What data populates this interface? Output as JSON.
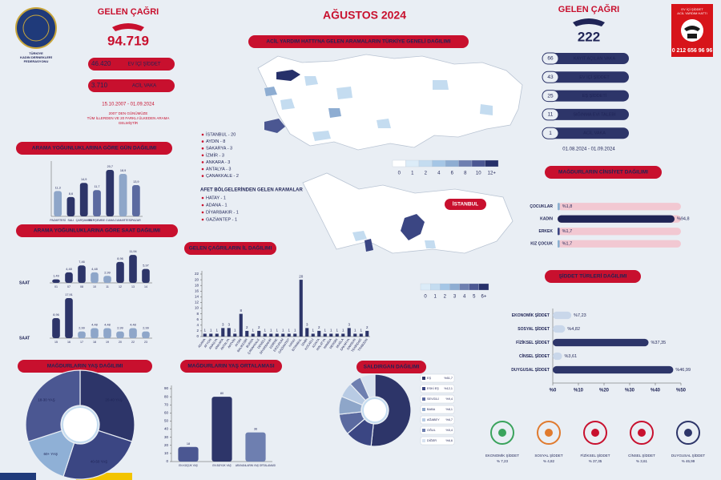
{
  "header": {
    "title": "AĞUSTOS 2024"
  },
  "logo": {
    "lines": [
      "TÜRKİYE",
      "KADIN DERNEKLERİ",
      "FEDERASYONU"
    ]
  },
  "left_summary": {
    "title": "GELEN ÇAĞRI",
    "total": "94.719",
    "items": [
      {
        "value": "46.420",
        "label": "EV İÇİ ŞİDDET"
      },
      {
        "value": "3.710",
        "label": "ACİL VAKA"
      }
    ],
    "date_range": "15.10.2007 - 01.09.2024",
    "note": [
      "2007' DEN GÜNÜMÜZE",
      "TÜM İLLERDEN VE 20 FARKLI ÜLKEDEN ARAMA",
      "GELMİŞTİR"
    ]
  },
  "right_summary": {
    "title": "GELEN ÇAĞRI",
    "total": "222",
    "items": [
      {
        "value": "66",
        "label": "KAYIT AÇILAN VAKA"
      },
      {
        "value": "43",
        "label": "EV İÇİ ŞİDDET"
      },
      {
        "value": "25",
        "label": "EŞ ŞİDDETİ"
      },
      {
        "value": "11",
        "label": "SIĞINMA EVİ TALEBİ"
      },
      {
        "value": "1",
        "label": "ACİL VAKA"
      }
    ],
    "date_range": "01.08.2024 - 01.09.2024"
  },
  "hotline": {
    "lines": [
      "EV İÇİ ŞİDDET",
      "ACİL YARDIM HATTI"
    ],
    "number": "0 212 656 96 96"
  },
  "map": {
    "title": "ACİL YARDIM HATTI'NA GELEN ARAMALARIN TÜRKİYE GENELİ DAĞILIMI",
    "cities": [
      "İSTANBUL - 20",
      "AYDIN - 8",
      "SAKARYA - 3",
      "İZMİR - 3",
      "ANKARA - 3",
      "ANTALYA - 3",
      "ÇANAKKALE - 2"
    ],
    "disaster_title": "AFET BÖLGELERİNDEN GELEN ARAMALAR",
    "disaster_cities": [
      "HATAY - 1",
      "ADANA - 1",
      "DİYARBAKIR - 1",
      "GAZİANTEP - 1"
    ],
    "legend": [
      "0",
      "1",
      "2",
      "4",
      "6",
      "8",
      "10",
      "12+"
    ],
    "istanbul_label": "İSTANBUL",
    "istanbul_legend": [
      "0",
      "1",
      "2",
      "3",
      "4",
      "5",
      "6+"
    ]
  },
  "icons": [
    {
      "name": "EKONOMİK ŞİDDET",
      "value": "% 7,23"
    },
    {
      "name": "SOSYAL ŞİDDET",
      "value": "% 4,82"
    },
    {
      "name": "FİZİKSEL ŞİDDET",
      "value": "% 37,35"
    },
    {
      "name": "CİNSEL ŞİDDET",
      "value": "% 3,61"
    },
    {
      "name": "DUYGUSAL ŞİDDET",
      "value": "% 46,99"
    }
  ],
  "chart_data": [
    {
      "type": "bar",
      "title": "ARAMA YOĞUNLUKLARINA GÖRE GÜN DAĞILIMI",
      "categories": [
        "PAZARTESİ",
        "SALI",
        "ÇARŞAMBA",
        "PERŞEMBE",
        "CUMA",
        "CUMARTESİ",
        "PAZAR"
      ],
      "values": [
        11.3,
        8.6,
        14.9,
        11.7,
        20.7,
        18.9,
        13.9
      ],
      "value_labels": [
        "11,3",
        "8,6",
        "14,9",
        "11,7",
        "20,7",
        "18,9",
        "13,9"
      ],
      "colors": [
        "#8ea6c9",
        "#2d3569",
        "#2d3569",
        "#5b6aa0",
        "#2d3569",
        "#8ea6c9",
        "#5b6aa0"
      ]
    },
    {
      "type": "bar",
      "title": "ARAMA YOĞUNLUKLARINA GÖRE SAAT DAĞILIMI",
      "x_label": "SAAT",
      "categories": [
        "01",
        "07",
        "08",
        "10",
        "11",
        "12",
        "13",
        "14"
      ],
      "values": [
        1.49,
        4.48,
        7.46,
        4.48,
        2.99,
        8.96,
        11.94,
        5.97
      ],
      "value_labels": [
        "1,49",
        "4,48",
        "7,46",
        "4,48",
        "2,99",
        "8,96",
        "11,94",
        "5,97"
      ],
      "colors": [
        "#2d3569",
        "#2d3569",
        "#2d3569",
        "#8ea6c9",
        "#8ea6c9",
        "#2d3569",
        "#2d3569",
        "#2d3569"
      ]
    },
    {
      "type": "bar",
      "x_label": "SAAT",
      "categories": [
        "15",
        "16",
        "17",
        "18",
        "19",
        "20",
        "22",
        "23"
      ],
      "values": [
        8.96,
        17.91,
        2.99,
        4.48,
        4.48,
        2.99,
        4.48,
        2.99
      ],
      "value_labels": [
        "8,96",
        "17,91",
        "2,99",
        "4,48",
        "4,48",
        "2,99",
        "4,48",
        "2,99"
      ],
      "colors": [
        "#2d3569",
        "#2d3569",
        "#8ea6c9",
        "#8ea6c9",
        "#8ea6c9",
        "#8ea6c9",
        "#8ea6c9",
        "#8ea6c9"
      ]
    },
    {
      "type": "bar",
      "title": "GELEN ÇAĞRILARIN İL DAĞILIMI",
      "categories": [
        "ADANA",
        "AFYON",
        "AMASYA",
        "ANKARA",
        "ANTALYA",
        "ARTVİN",
        "AYDIN",
        "BALIKESİR",
        "BURSA",
        "ÇANAKKALE",
        "DENİZLİ",
        "DİYARBAKIR",
        "EDİRNE",
        "ERZURUM",
        "GAZİANTEP",
        "HATAY",
        "İSTANBUL",
        "İZMİR",
        "KOCAELİ",
        "KONYA",
        "MALATYA",
        "MANİSA",
        "MERSİN",
        "MUĞLA",
        "SAKARYA",
        "SAMSUN",
        "TEKİRDAĞ",
        "TRABZON"
      ],
      "values": [
        1,
        1,
        1,
        3,
        3,
        1,
        8,
        2,
        1,
        2,
        1,
        1,
        1,
        1,
        1,
        1,
        20,
        3,
        1,
        2,
        1,
        1,
        1,
        1,
        3,
        1,
        1,
        2
      ],
      "color": "#2d3569",
      "ylim": [
        0,
        22
      ],
      "yticks": [
        0,
        2,
        4,
        6,
        8,
        10,
        12,
        14,
        16,
        18,
        20,
        22
      ]
    },
    {
      "type": "pie",
      "title": "MAĞDURLARIN YAŞ DAĞILIMI",
      "categories": [
        "20-40 YAŞ",
        "40-50 YAŞ",
        "60+ YAŞ",
        "18-30 YAŞ"
      ],
      "values": [
        30,
        25,
        15,
        30
      ],
      "colors": [
        "#2d3569",
        "#3b4683",
        "#8fb0d6",
        "#4b5792"
      ]
    },
    {
      "type": "bar",
      "title": "MAĞDURLARIN YAŞ ORTALAMASI",
      "categories": [
        "EN KÜÇÜK YAŞ",
        "EN BÜYÜK YAŞ",
        "ARAYANLARIN YAŞ ORTALAMASI"
      ],
      "values": [
        18,
        80,
        36
      ],
      "colors": [
        "#4b5792",
        "#2d3569",
        "#6e7fb0"
      ],
      "ylim": [
        0,
        90
      ],
      "yticks": [
        0,
        10,
        20,
        30,
        40,
        50,
        60,
        70,
        80,
        90
      ]
    },
    {
      "type": "pie",
      "title": "SALDIRGAN DAĞILIMI",
      "categories": [
        "EŞ",
        "ESKİ EŞ",
        "SEVGİLİ",
        "BABA",
        "AĞABEY",
        "OĞUL",
        "DİĞER"
      ],
      "values": [
        51.7,
        12.1,
        9.4,
        8.1,
        6.7,
        5.4,
        6.6
      ],
      "value_labels": [
        "%51,7",
        "%12,1",
        "%9,4",
        "%8,1",
        "%6,7",
        "%5,4",
        "%6,6"
      ],
      "colors": [
        "#2d3569",
        "#3b4683",
        "#5b6aa0",
        "#8ea6c9",
        "#b8cbe4",
        "#6e7fb0",
        "#d7e2f0"
      ]
    },
    {
      "type": "hbar",
      "title": "MAĞDURLARIN CİNSİYET DAĞILIMI",
      "categories": [
        "ÇOCUKLAR",
        "KADIN",
        "ERKEK",
        "KIZ ÇOCUK"
      ],
      "values": [
        1.8,
        94.8,
        1.7,
        1.7
      ],
      "value_labels": [
        "%1,8",
        "%94,8",
        "%1,7",
        "%1,7"
      ],
      "colors": [
        "#8ab0d0",
        "#1f2456",
        "#3b4683",
        "#8ab0d0"
      ],
      "track": "#f2c8d2",
      "xlim": [
        0,
        100
      ]
    },
    {
      "type": "hbar",
      "title": "ŞİDDET TÜRLERİ DAĞILIMI",
      "categories": [
        "EKONOMİK ŞİDDET",
        "SOSYAL ŞİDDET",
        "FİZİKSEL ŞİDDET",
        "CİNSEL ŞİDDET",
        "DUYGUSAL ŞİDDET"
      ],
      "values": [
        7.23,
        4.82,
        37.35,
        3.61,
        46.99
      ],
      "value_labels": [
        "%7,23",
        "%4,82",
        "%37,35",
        "%3,61",
        "%46,99"
      ],
      "colors": [
        "#c9d7ea",
        "#c9d7ea",
        "#2d3569",
        "#c9d7ea",
        "#2d3569"
      ],
      "xlim": [
        0,
        50
      ],
      "xticks": [
        {
          "value": 0,
          "label": "%0"
        },
        {
          "value": 10,
          "label": "%10"
        },
        {
          "value": 20,
          "label": "%20"
        },
        {
          "value": 30,
          "label": "%30"
        },
        {
          "value": 40,
          "label": "%40"
        },
        {
          "value": 50,
          "label": "%50"
        }
      ]
    }
  ]
}
